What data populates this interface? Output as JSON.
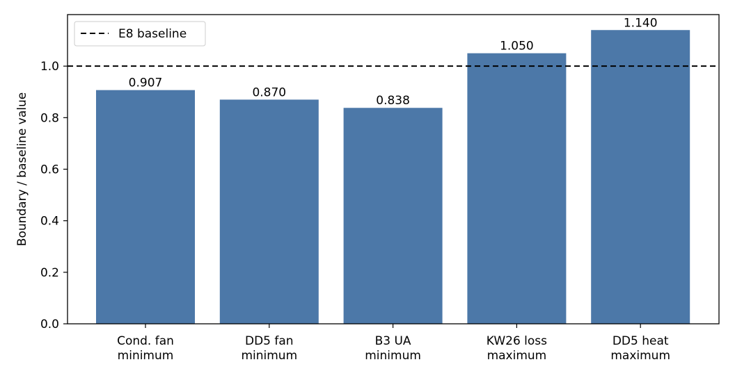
{
  "chart_data": {
    "type": "bar",
    "categories": [
      [
        "Cond. fan",
        "minimum"
      ],
      [
        "DD5 fan",
        "minimum"
      ],
      [
        "B3 UA",
        "minimum"
      ],
      [
        "KW26 loss",
        "maximum"
      ],
      [
        "DD5 heat",
        "maximum"
      ]
    ],
    "values": [
      0.907,
      0.87,
      0.838,
      1.05,
      1.14
    ],
    "value_labels": [
      "0.907",
      "0.870",
      "0.838",
      "1.050",
      "1.140"
    ],
    "bar_color": "#4c78a8",
    "ylabel": "Boundary / baseline value",
    "xlabel": "",
    "ylim": [
      0,
      1.2
    ],
    "yticks": [
      0.0,
      0.2,
      0.4,
      0.6,
      0.8,
      1.0
    ],
    "ytick_labels": [
      "0.0",
      "0.2",
      "0.4",
      "0.6",
      "0.8",
      "1.0"
    ],
    "baseline": {
      "value": 1.0,
      "label": "E8 baseline",
      "style": "dashed",
      "color": "#000000"
    },
    "legend": {
      "placement": "top-left",
      "entries": [
        "E8 baseline"
      ]
    },
    "grid": false
  }
}
